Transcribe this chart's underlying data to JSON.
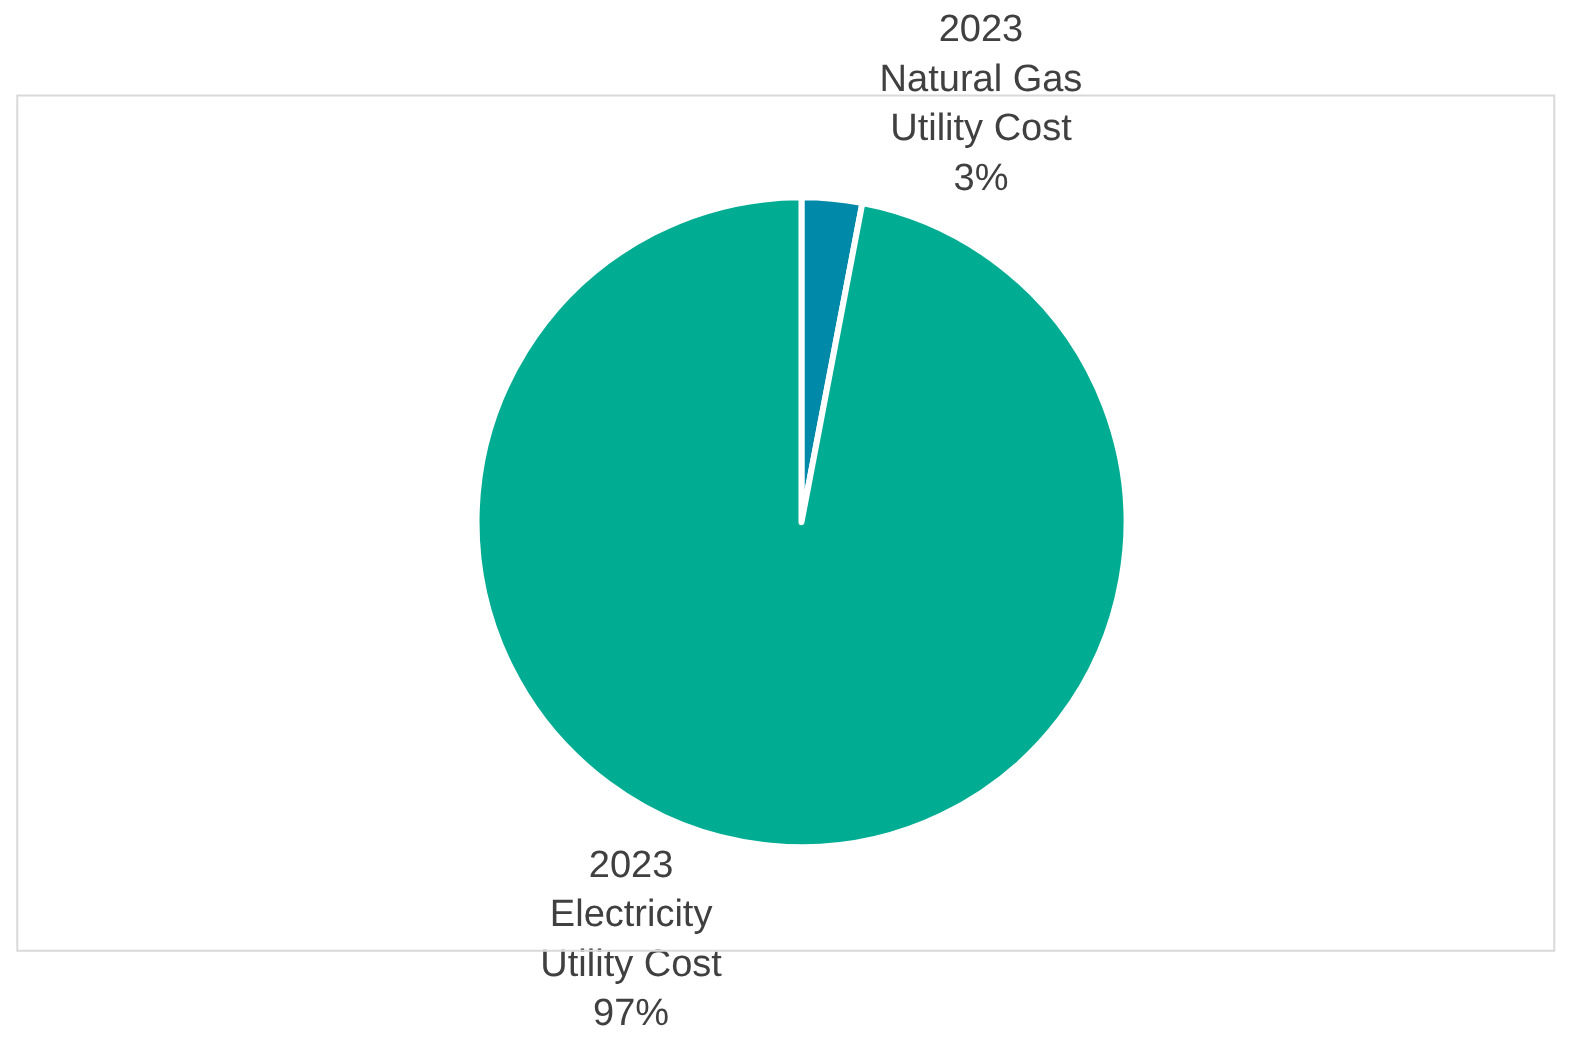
{
  "chart_data": {
    "type": "pie",
    "categories": [
      "2023 Natural Gas Utility Cost",
      "2023 Electricity Utility Cost"
    ],
    "values": [
      3,
      97
    ],
    "value_labels": [
      "3%",
      "97%"
    ],
    "colors": [
      "#0089a8",
      "#00ad93"
    ],
    "legend": false
  }
}
